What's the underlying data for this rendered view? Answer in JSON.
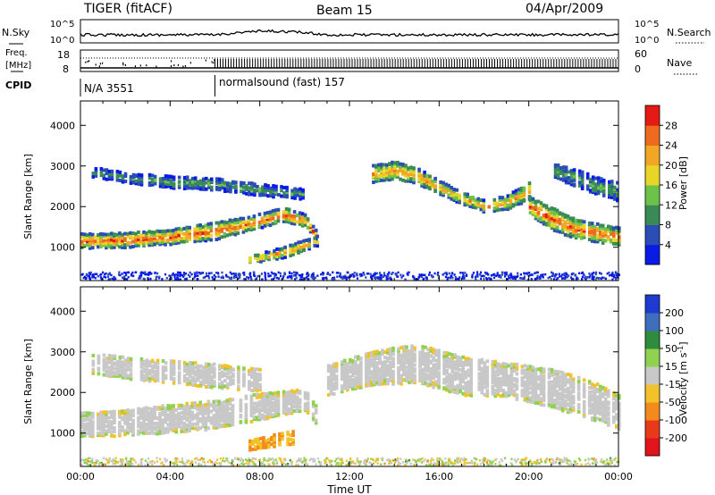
{
  "header": {
    "station": "TIGER (fitACF)",
    "beam": "Beam 15",
    "date": "04/Apr/2009"
  },
  "noise_panel": {
    "left_label": "N.Sky",
    "right_label": "N.Search",
    "left_ticks": [
      "10^5",
      "10^0"
    ],
    "right_ticks": [
      "10^5",
      "10^0"
    ]
  },
  "freq_panel": {
    "left_label_1": "Freq.",
    "left_label_2": "[MHz]",
    "left_ticks": [
      "18",
      "8"
    ],
    "right_label": "Nave",
    "right_ticks": [
      "60",
      "0"
    ]
  },
  "cpid_panel": {
    "label": "CPID",
    "segments": [
      {
        "label": "N/A 3551",
        "start_hour": 0,
        "end_hour": 6
      },
      {
        "label": "normalsound (fast) 157",
        "start_hour": 6,
        "end_hour": 24
      }
    ]
  },
  "x_axis": {
    "label": "Time UT",
    "ticks": [
      "00:00",
      "04:00",
      "08:00",
      "12:00",
      "16:00",
      "20:00",
      "00:00"
    ],
    "tick_hours": [
      0,
      4,
      8,
      12,
      16,
      20,
      24
    ]
  },
  "y_axis": {
    "label": "Slant Range [km]",
    "ticks": [
      "1000",
      "2000",
      "3000",
      "4000"
    ],
    "tick_values": [
      1000,
      2000,
      3000,
      4000
    ]
  },
  "power_scale": {
    "label": "Power [dB]",
    "ticks": [
      "4",
      "8",
      "12",
      "16",
      "20",
      "24",
      "28"
    ],
    "colors": [
      "#0a1be6",
      "#2a4db8",
      "#3a8a58",
      "#6dc24a",
      "#e8d52a",
      "#f2a626",
      "#ee6a1e",
      "#e51a14"
    ]
  },
  "velocity_scale": {
    "label": "Velocity [m s",
    "label_sup": "-1",
    "label_end": "]",
    "ticks": [
      "200",
      "100",
      "50",
      "15",
      "-15",
      "-50",
      "-100",
      "-200"
    ],
    "colors": [
      "#1f3ad0",
      "#3e6ebd",
      "#2f8c3c",
      "#8fd24f",
      "#c8c8c8",
      "#f2c22a",
      "#f28a1e",
      "#e83a1a",
      "#e0141c"
    ]
  },
  "chart_data": [
    {
      "type": "heatmap",
      "title": "",
      "xlabel": "Time UT",
      "ylabel": "Slant Range [km]",
      "xlim": [
        0,
        24
      ],
      "ylim": [
        180,
        4600
      ],
      "colorbar": "Power [dB]",
      "bands": [
        {
          "name": "",
          "hours": [
            0,
            2,
            4,
            6,
            8,
            9,
            10,
            10.5
          ],
          "center": [
            1150,
            1170,
            1250,
            1400,
            1650,
            1800,
            1650,
            1250
          ],
          "width": [
            320,
            320,
            320,
            380,
            300,
            300,
            250,
            200
          ],
          "level": 28
        },
        {
          "name": "",
          "hours": [
            7.5,
            8.5,
            9.5,
            10.5
          ],
          "center": [
            700,
            800,
            950,
            1150
          ],
          "width": [
            150,
            200,
            250,
            200
          ],
          "level": 24
        },
        {
          "name": "",
          "hours": [
            0.5,
            2,
            4,
            6,
            8,
            10
          ],
          "center": [
            2850,
            2700,
            2600,
            2550,
            2400,
            2300
          ],
          "width": [
            200,
            200,
            250,
            250,
            250,
            200
          ],
          "level": 12
        },
        {
          "name": "",
          "hours": [
            13,
            14,
            15,
            16,
            17,
            18,
            19,
            20
          ],
          "center": [
            2800,
            2900,
            2750,
            2450,
            2200,
            2000,
            2100,
            2400
          ],
          "width": [
            400,
            400,
            350,
            300,
            250,
            250,
            300,
            400
          ],
          "level": 24
        },
        {
          "name": "",
          "hours": [
            20,
            21,
            22,
            23,
            24
          ],
          "center": [
            2000,
            1700,
            1450,
            1350,
            1250
          ],
          "width": [
            400,
            500,
            450,
            400,
            400
          ],
          "level": 28
        },
        {
          "name": "",
          "hours": [
            21,
            22,
            23,
            24
          ],
          "center": [
            2900,
            2700,
            2500,
            2350
          ],
          "width": [
            300,
            400,
            400,
            400
          ],
          "level": 12
        }
      ]
    },
    {
      "type": "heatmap",
      "title": "",
      "xlabel": "Time UT",
      "ylabel": "Slant Range [km]",
      "xlim": [
        0,
        24
      ],
      "ylim": [
        180,
        4600
      ],
      "colorbar": "Velocity [m s-1]",
      "bands": [
        {
          "name": "",
          "hours": [
            0,
            2,
            4,
            6,
            8,
            10,
            10.5
          ],
          "center": [
            1200,
            1250,
            1350,
            1450,
            1650,
            1800,
            1400
          ],
          "width": [
            550,
            600,
            650,
            650,
            600,
            500,
            400
          ],
          "velocity": 0
        },
        {
          "name": "",
          "hours": [
            0.5,
            2,
            4,
            6,
            8
          ],
          "center": [
            2700,
            2600,
            2500,
            2400,
            2300
          ],
          "width": [
            450,
            500,
            500,
            550,
            500
          ],
          "velocity": 0
        },
        {
          "name": "",
          "hours": [
            7.5,
            8.5,
            9.5
          ],
          "center": [
            700,
            800,
            900
          ],
          "width": [
            200,
            250,
            300
          ],
          "velocity": -50
        },
        {
          "name": "",
          "hours": [
            11,
            13,
            15,
            17,
            19,
            21,
            23,
            24
          ],
          "center": [
            2300,
            2600,
            2700,
            2400,
            2300,
            2100,
            1750,
            1500
          ],
          "width": [
            700,
            800,
            900,
            900,
            800,
            900,
            900,
            800
          ],
          "velocity": 0
        }
      ]
    }
  ]
}
